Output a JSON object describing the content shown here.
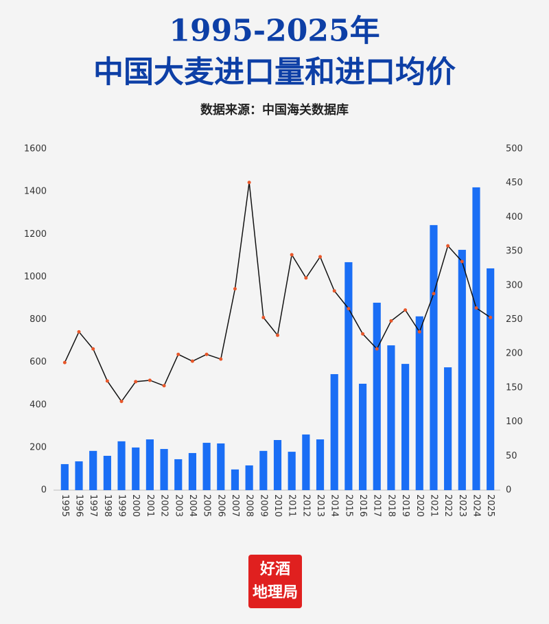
{
  "chart_data": {
    "type": "bar",
    "title": [
      "1995-2025年",
      "中国大麦进口量和进口均价"
    ],
    "subtitle": "数据来源：中国海关数据库",
    "logo": [
      "好酒",
      "地理局"
    ],
    "categories": [
      "1995",
      "1996",
      "1997",
      "1998",
      "1999",
      "2000",
      "2001",
      "2002",
      "2003",
      "2004",
      "2005",
      "2006",
      "2007",
      "2008",
      "2009",
      "2010",
      "2011",
      "2012",
      "2013",
      "2014",
      "2015",
      "2016",
      "2017",
      "2018",
      "2019",
      "2020",
      "2021",
      "2022",
      "2023",
      "2024",
      "2025"
    ],
    "series": [
      {
        "type": "bar",
        "color": "#1a6ef5",
        "axis": "y",
        "values": [
          122,
          135,
          184,
          161,
          229,
          200,
          238,
          193,
          145,
          174,
          222,
          219,
          97,
          116,
          184,
          235,
          180,
          261,
          238,
          544,
          1069,
          499,
          879,
          679,
          592,
          815,
          1243,
          576,
          1127,
          1420,
          1040
        ]
      },
      {
        "type": "line",
        "color": "#111111",
        "marker_color": "#e8572a",
        "axis": "y2",
        "values": [
          187,
          232,
          207,
          160,
          130,
          159,
          161,
          153,
          199,
          189,
          199,
          192,
          295,
          451,
          253,
          227,
          345,
          311,
          342,
          292,
          266,
          229,
          207,
          248,
          264,
          232,
          288,
          358,
          335,
          267,
          253
        ]
      }
    ],
    "ylim": [
      0,
      1600
    ],
    "yticks": [
      0,
      200,
      400,
      600,
      800,
      1000,
      1200,
      1400,
      1600
    ],
    "y2lim": [
      0,
      500
    ],
    "y2ticks": [
      0,
      50,
      100,
      150,
      200,
      250,
      300,
      350,
      400,
      450,
      500
    ],
    "grid": false
  }
}
